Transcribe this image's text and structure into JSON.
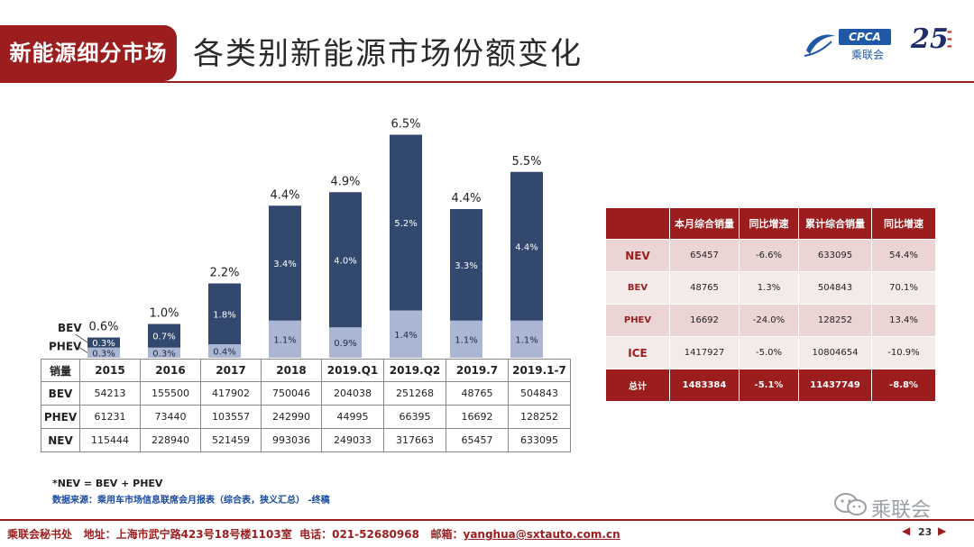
{
  "header": {
    "tag": "新能源细分市场",
    "title": "各类别新能源市场份额变化",
    "logo_text": "CPCA",
    "logo_zh": "乘联会",
    "anniversary": "25"
  },
  "chart_data": {
    "type": "bar",
    "stacked": true,
    "categories": [
      "2015",
      "2016",
      "2017",
      "2018",
      "2019.Q1",
      "2019.Q2",
      "2019.7",
      "2019.1-7"
    ],
    "series": [
      {
        "name": "PHEV",
        "values": [
          0.3,
          0.3,
          0.4,
          1.1,
          0.9,
          1.4,
          1.1,
          1.1
        ],
        "color": "#aab6d4"
      },
      {
        "name": "BEV",
        "values": [
          0.3,
          0.7,
          1.8,
          3.4,
          4.0,
          5.2,
          3.3,
          4.4
        ],
        "color": "#33486e"
      }
    ],
    "totals": [
      0.6,
      1.0,
      2.2,
      4.4,
      4.9,
      6.5,
      4.4,
      5.5
    ],
    "unit": "%"
  },
  "data_table": {
    "corner": "销量",
    "rows": [
      {
        "label": "BEV",
        "values": [
          "54213",
          "155500",
          "417902",
          "750046",
          "204038",
          "251268",
          "48765",
          "504843"
        ]
      },
      {
        "label": "PHEV",
        "values": [
          "61231",
          "73440",
          "103557",
          "242990",
          "44995",
          "66395",
          "16692",
          "128252"
        ]
      },
      {
        "label": "NEV",
        "values": [
          "115444",
          "228940",
          "521459",
          "993036",
          "249033",
          "317663",
          "65457",
          "633095"
        ]
      }
    ]
  },
  "note": "*NEV = BEV + PHEV",
  "source": "数据来源：乘用车市场信息联席会月报表（综合表，狭义汇总） -终稿",
  "summary_table": {
    "headers": [
      "",
      "本月综合销量",
      "同比增速",
      "累计综合销量",
      "同比增速"
    ],
    "rows": [
      {
        "label": "NEV",
        "values": [
          "65457",
          "-6.6%",
          "633095",
          "54.4%"
        ]
      },
      {
        "label": "BEV",
        "values": [
          "48765",
          "1.3%",
          "504843",
          "70.1%"
        ]
      },
      {
        "label": "PHEV",
        "values": [
          "16692",
          "-24.0%",
          "128252",
          "13.4%"
        ]
      },
      {
        "label": "ICE",
        "values": [
          "1417927",
          "-5.0%",
          "10804654",
          "-10.9%"
        ]
      },
      {
        "label": "总计",
        "values": [
          "1483384",
          "-5.1%",
          "11437749",
          "-8.8%"
        ]
      }
    ]
  },
  "watermark": "乘联会",
  "footer": {
    "org": "乘联会秘书处",
    "addr_label": "地址：",
    "addr": "上海市武宁路423号18号楼1103室",
    "tel_label": "电话：",
    "tel": "021-52680968",
    "mail_label": "邮箱：",
    "mail": "yanghua@sxtauto.com.cn",
    "page": "23"
  }
}
